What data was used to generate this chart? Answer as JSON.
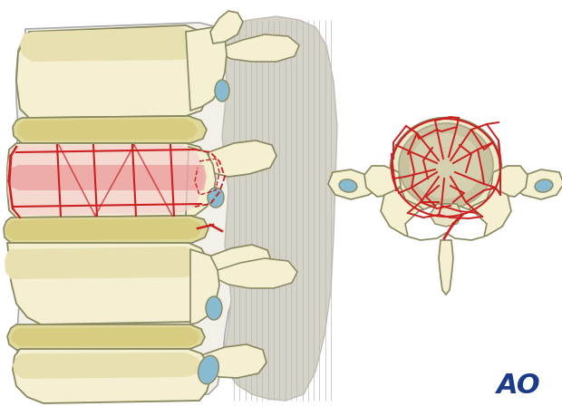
{
  "bg_color": "#ffffff",
  "bone_color": "#f5f0d2",
  "bone_dark": "#e8e0b0",
  "bone_outline": "#888860",
  "disc_color": "#e0d898",
  "blue_highlight": "#88bbd0",
  "red_fracture": "#cc2020",
  "red_soft": "#e05050",
  "muscle_color": "#d8d4cc",
  "ao_color": "#1a3a8a",
  "fig_width": 6.2,
  "fig_height": 4.59,
  "dpi": 100
}
